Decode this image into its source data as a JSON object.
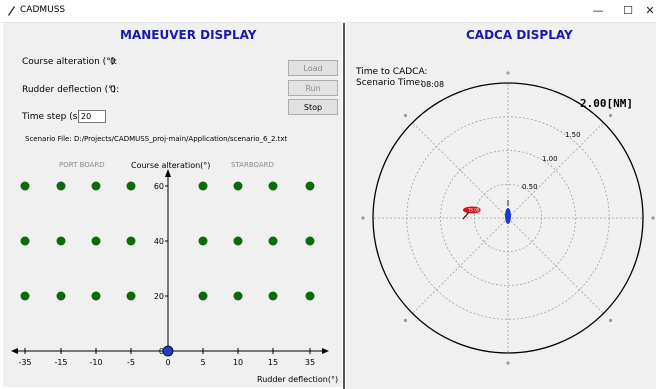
{
  "window": {
    "title": "CADMUSS",
    "minimize_glyph": "—",
    "maximize_glyph": "☐",
    "close_glyph": "✕"
  },
  "maneuver": {
    "title": "MANEUVER DISPLAY",
    "course_label": "Course alteration (°):",
    "course_value": "0",
    "rudder_label": "Rudder deflection (°):",
    "rudder_value": "0",
    "timestep_label": "Time step (s):",
    "timestep_value": "20",
    "scenario_file": "Scenario File: D:/Projects/CADMUSS_proj-main/Application/scenario_6_2.txt",
    "buttons": {
      "load": "Load scenario",
      "run": "Run scenario",
      "stop": "Stop"
    },
    "plot": {
      "port_label": "PORT BOARD",
      "starboard_label": "STARBOARD",
      "y_axis_title": "Course alteration(°)",
      "x_axis_title": "Rudder deflection(°)",
      "x_ticks": [
        "-35",
        "-15",
        "-10",
        "-5",
        "0",
        "5",
        "10",
        "15",
        "35"
      ],
      "y_ticks": [
        "60",
        "40",
        "20",
        "0"
      ],
      "dot_color": "#0b6b0b",
      "current_color": "#1f3fc8"
    }
  },
  "cadca": {
    "title": "CADCA DISPLAY",
    "time_label": "Time to CADCA:",
    "scenario_time_label": "Scenario Time:",
    "scenario_time_value": "08:08",
    "range_max": "2.00[NM]",
    "range_labels": [
      "1.50",
      "1.00",
      "0.50"
    ],
    "own_ship_color": "#1a3ad0",
    "target_ship_color": "#e01010",
    "target_label": "TS 001"
  }
}
